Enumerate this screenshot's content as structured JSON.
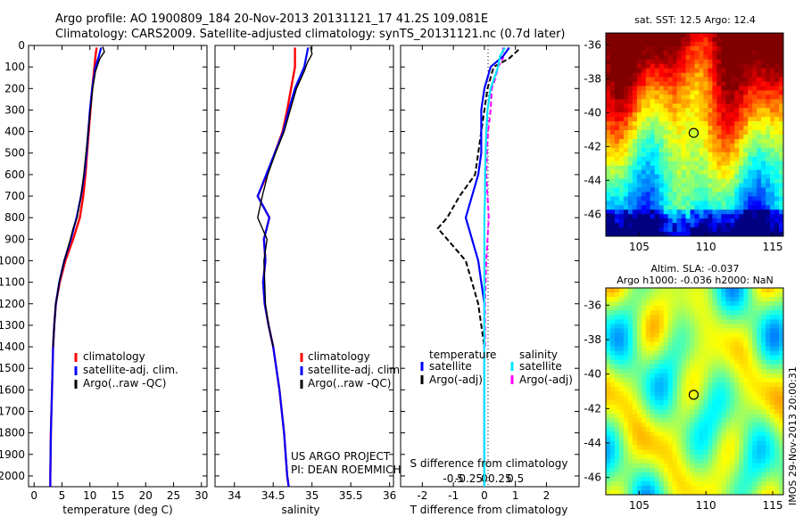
{
  "header": {
    "line1": "Argo profile: AO 1900809_184 20-Nov-2013 20131121_17 41.2S 109.081E",
    "line2": "Climatology: CARS2009. Satellite-adjusted climatology: synTS_20131121.nc (0.7d later)"
  },
  "colors": {
    "climatology": "#ff0000",
    "satellite": "#0000ff",
    "argo": "#000000",
    "sal_satellite": "#00e5ff",
    "sal_argo": "#ff00ff"
  },
  "chart_data": [
    {
      "type": "line",
      "id": "temperature",
      "xlabel": "temperature (deg C)",
      "xlim": [
        -1,
        31
      ],
      "ylim": [
        0,
        2050
      ],
      "xticks": [
        0,
        5,
        10,
        15,
        20,
        25,
        30
      ],
      "yticks": [
        0,
        100,
        200,
        300,
        400,
        500,
        600,
        700,
        800,
        900,
        1000,
        1100,
        1200,
        1300,
        1400,
        1500,
        1600,
        1700,
        1800,
        1900,
        2000
      ],
      "legend": [
        "climatology",
        "satellite-adj. clim.",
        "Argo(..raw -QC)"
      ],
      "series": [
        {
          "name": "climatology",
          "pressure": [
            10,
            50,
            100,
            200,
            300,
            400,
            500,
            600,
            700,
            800,
            900,
            1000,
            1100,
            1200,
            1300,
            1400,
            1600,
            1800,
            2000,
            2050
          ],
          "values": [
            11.2,
            11.0,
            10.8,
            10.4,
            10.1,
            9.8,
            9.5,
            9.2,
            8.8,
            8.2,
            7.0,
            5.6,
            4.6,
            3.9,
            3.6,
            3.4,
            3.2,
            3.0,
            2.9,
            2.9
          ]
        },
        {
          "name": "satellite-adj. clim.",
          "pressure": [
            10,
            50,
            100,
            200,
            300,
            400,
            500,
            600,
            700,
            800,
            900,
            1000,
            1100,
            1200,
            1300,
            1400,
            1600,
            1800,
            2000,
            2050
          ],
          "values": [
            12.0,
            11.6,
            11.0,
            10.4,
            10.0,
            9.7,
            9.4,
            9.0,
            8.4,
            7.6,
            6.6,
            5.4,
            4.5,
            3.9,
            3.6,
            3.4,
            3.2,
            3.0,
            2.9,
            2.9
          ]
        },
        {
          "name": "Argo(..raw -QC)",
          "pressure": [
            5,
            30,
            60,
            90,
            120,
            200,
            300,
            400,
            500,
            600,
            700,
            800,
            850,
            900,
            1000,
            1100,
            1200,
            1300,
            1400
          ],
          "values": [
            12.3,
            12.6,
            11.8,
            11.4,
            11.0,
            10.5,
            10.1,
            9.7,
            9.3,
            8.9,
            8.4,
            7.7,
            7.0,
            6.5,
            5.4,
            4.5,
            3.9,
            3.6,
            3.4
          ]
        }
      ]
    },
    {
      "type": "line",
      "id": "salinity",
      "xlabel": "salinity",
      "xlim": [
        33.75,
        36.05
      ],
      "ylim": [
        0,
        2050
      ],
      "xticks": [
        34,
        34.5,
        35,
        35.5,
        36
      ],
      "legend": [
        "climatology",
        "satellite-adj. clim.",
        "Argo(..raw -QC)"
      ],
      "credit": [
        "US ARGO PROJECT",
        "PI: DEAN ROEMMICH"
      ],
      "series": [
        {
          "name": "climatology",
          "pressure": [
            10,
            100,
            200,
            300,
            400,
            500,
            600,
            700,
            800,
            900,
            1000,
            1100,
            1200,
            1300,
            1400,
            1600,
            1800,
            2000,
            2050
          ],
          "values": [
            34.78,
            34.78,
            34.73,
            34.68,
            34.62,
            34.52,
            34.42,
            34.3,
            34.45,
            34.38,
            34.4,
            34.37,
            34.39,
            34.44,
            34.5,
            34.58,
            34.64,
            34.68,
            34.7
          ]
        },
        {
          "name": "satellite-adj. clim.",
          "pressure": [
            10,
            100,
            200,
            300,
            400,
            500,
            600,
            700,
            800,
            900,
            1000,
            1100,
            1200,
            1300,
            1400,
            1600,
            1800,
            2000,
            2050
          ],
          "values": [
            34.95,
            34.9,
            34.78,
            34.7,
            34.63,
            34.52,
            34.41,
            34.3,
            34.45,
            34.38,
            34.4,
            34.37,
            34.39,
            34.44,
            34.5,
            34.58,
            34.64,
            34.68,
            34.7
          ]
        },
        {
          "name": "Argo(..raw -QC)",
          "pressure": [
            5,
            40,
            80,
            120,
            200,
            300,
            400,
            500,
            600,
            700,
            800,
            900,
            1000,
            1100,
            1200,
            1300,
            1400
          ],
          "values": [
            34.98,
            35.0,
            34.94,
            34.9,
            34.8,
            34.72,
            34.64,
            34.53,
            34.43,
            34.36,
            34.3,
            34.42,
            34.38,
            34.39,
            34.4,
            34.44,
            34.5
          ]
        }
      ]
    },
    {
      "type": "line",
      "id": "difference",
      "xlabel": "T difference from climatology",
      "x2label": "S difference from climatology",
      "xlim": [
        -2.7,
        3.05
      ],
      "ylim": [
        0,
        2050
      ],
      "xticks": [
        -2,
        -1,
        0,
        1,
        2
      ],
      "x2ticks": [
        -0.5,
        -0.25,
        0,
        0.25,
        0.5
      ],
      "legend_temperature": [
        "temperature",
        "satellite",
        "Argo(-adj)"
      ],
      "legend_salinity": [
        "salinity",
        "satellite",
        "Argo(-adj)"
      ],
      "series": [
        {
          "name": "T satellite",
          "pressure": [
            10,
            50,
            100,
            200,
            300,
            400,
            500,
            600,
            700,
            800,
            900,
            1000,
            1100,
            1200,
            1300,
            1400,
            1600,
            1800,
            2000,
            2050
          ],
          "values": [
            0.8,
            0.6,
            0.2,
            0,
            -0.1,
            -0.1,
            -0.1,
            -0.2,
            -0.4,
            -0.6,
            -0.4,
            -0.2,
            -0.1,
            0,
            0,
            0,
            0,
            0,
            0,
            0
          ]
        },
        {
          "name": "T Argo(-adj)",
          "pressure": [
            20,
            60,
            100,
            200,
            300,
            400,
            500,
            600,
            700,
            800,
            850,
            900,
            1000,
            1100,
            1200,
            1300,
            1400
          ],
          "values": [
            1.1,
            0.8,
            0.3,
            0.1,
            0,
            -0.1,
            -0.2,
            -0.3,
            -0.8,
            -1.2,
            -1.5,
            -1.2,
            -0.6,
            -0.4,
            -0.2,
            -0.1,
            0
          ]
        },
        {
          "name": "S satellite",
          "pressure": [
            10,
            50,
            100,
            200,
            300,
            400,
            500,
            600,
            700,
            800,
            900,
            1000,
            1100,
            1200,
            1300,
            1400,
            1600,
            1800,
            2000,
            2050
          ],
          "values": [
            0.33,
            0.25,
            0.22,
            0.1,
            0.05,
            0.03,
            0.02,
            0.01,
            0.01,
            0,
            0,
            0,
            0,
            0,
            0,
            0,
            0,
            0,
            0,
            0
          ]
        },
        {
          "name": "S Argo(-adj)",
          "pressure": [
            10,
            60,
            100,
            150,
            200,
            300,
            400,
            500,
            600,
            700,
            800,
            900,
            1000,
            1100,
            1200,
            1300,
            1400
          ],
          "values": [
            0.3,
            0.3,
            0.22,
            0.18,
            0.12,
            0.1,
            0.06,
            0.04,
            0.03,
            0.05,
            0.07,
            0.05,
            0.03,
            0.02,
            0.01,
            0.01,
            0.01
          ]
        }
      ]
    },
    {
      "type": "heatmap",
      "id": "sst_map",
      "title": "sat. SST: 12.5 Argo: 12.4",
      "xlim": [
        102.5,
        115.8
      ],
      "ylim": [
        -47.3,
        -35.3
      ],
      "xticks": [
        105,
        110,
        115
      ],
      "yticks": [
        -36,
        -38,
        -40,
        -42,
        -44,
        -46
      ],
      "marker": {
        "lon": 109.081,
        "lat": -41.2
      }
    },
    {
      "type": "heatmap",
      "id": "sla_map",
      "title": "Altim. SLA: -0.037",
      "subtitle": "Argo h1000: -0.036 h2000: NaN",
      "xlim": [
        102.5,
        115.8
      ],
      "ylim": [
        -47.0,
        -35.0
      ],
      "xticks": [
        105,
        110,
        115
      ],
      "yticks": [
        -36,
        -38,
        -40,
        -42,
        -44,
        -46
      ],
      "marker": {
        "lon": 109.081,
        "lat": -41.2
      }
    }
  ],
  "footer": {
    "imos_stamp": "IMOS 29-Nov-2013 20:00:31"
  }
}
